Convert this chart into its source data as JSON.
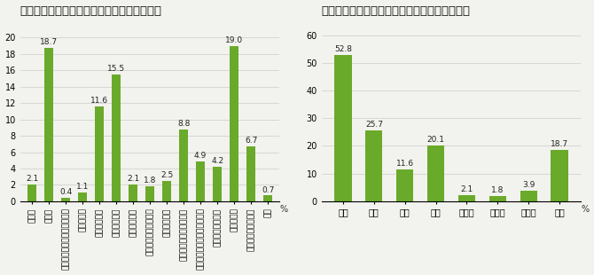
{
  "left": {
    "title": "いじめあっせん事案における被申請人の業種",
    "categories": [
      "建設業",
      "製造業",
      "電気・ガス・熱供給・水道業",
      "情報通信業",
      "運輸、郵便業",
      "卸売・小売業",
      "金融・保険業",
      "不動産業・物品賃貸業",
      "学術研究所等",
      "宿泊業、飲食サービス業",
      "生活関連サービス業、娯楽業",
      "教育、学習支援業",
      "医療、福祉",
      "その他サービス業等",
      "公務"
    ],
    "values": [
      2.1,
      18.7,
      0.4,
      1.1,
      11.6,
      15.5,
      2.1,
      1.8,
      2.5,
      8.8,
      4.9,
      4.2,
      19.0,
      6.7,
      0.7
    ],
    "ylim": [
      0,
      22
    ],
    "yticks": [
      0,
      2,
      4,
      6,
      8,
      10,
      12,
      14,
      16,
      18,
      20
    ],
    "ylabel": "%",
    "bar_color": "#6aaa2a"
  },
  "right": {
    "title": "いじめのあっせん事案におけるいじめの行為者",
    "categories": [
      "上司",
      "役員",
      "先輩",
      "同僚",
      "部下等",
      "顧客等",
      "その他",
      "不明"
    ],
    "values": [
      52.8,
      25.7,
      11.6,
      20.1,
      2.1,
      1.8,
      3.9,
      18.7
    ],
    "ylim": [
      0,
      65
    ],
    "yticks": [
      0,
      10,
      20,
      30,
      40,
      50,
      60
    ],
    "ylabel": "%",
    "bar_color": "#6aaa2a"
  },
  "bg_color": "#f2f2ee",
  "bar_color": "#6aaa2a",
  "title_fontsize": 9.5,
  "label_fontsize": 6.5,
  "tick_fontsize": 7,
  "value_fontsize": 6.5
}
